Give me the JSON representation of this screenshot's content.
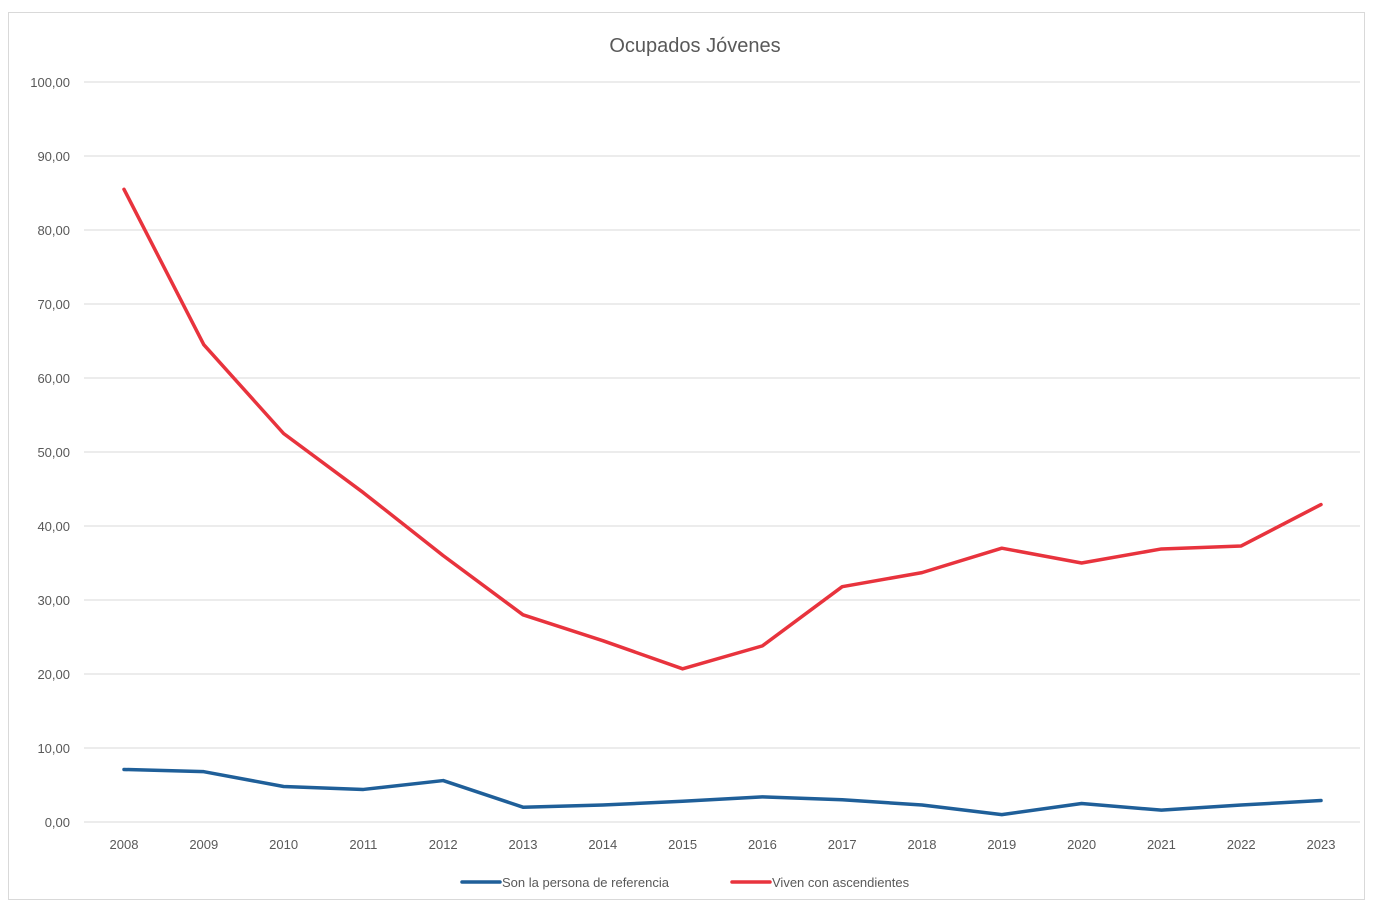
{
  "chart_data": {
    "type": "line",
    "title": "Ocupados Jóvenes",
    "xlabel": "",
    "ylabel": "",
    "categories": [
      "2008",
      "2009",
      "2010",
      "2011",
      "2012",
      "2013",
      "2014",
      "2015",
      "2016",
      "2017",
      "2018",
      "2019",
      "2020",
      "2021",
      "2022",
      "2023"
    ],
    "y_ticks": [
      "0,00",
      "10,00",
      "20,00",
      "30,00",
      "40,00",
      "50,00",
      "60,00",
      "70,00",
      "80,00",
      "90,00",
      "100,00"
    ],
    "ylim": [
      0,
      100
    ],
    "grid": true,
    "legend_position": "bottom",
    "series": [
      {
        "name": "Son la persona de referencia",
        "color": "#1f5f99",
        "values": [
          7.1,
          6.8,
          4.8,
          4.4,
          5.6,
          2.0,
          2.3,
          2.8,
          3.4,
          3.0,
          2.3,
          1.0,
          2.5,
          1.6,
          2.3,
          2.9
        ]
      },
      {
        "name": "Viven con ascendientes",
        "color": "#e8333d",
        "values": [
          85.5,
          64.5,
          52.5,
          44.5,
          36.0,
          28.0,
          24.5,
          20.7,
          23.8,
          31.8,
          33.7,
          37.0,
          35.0,
          36.9,
          37.3,
          42.9
        ]
      }
    ]
  }
}
